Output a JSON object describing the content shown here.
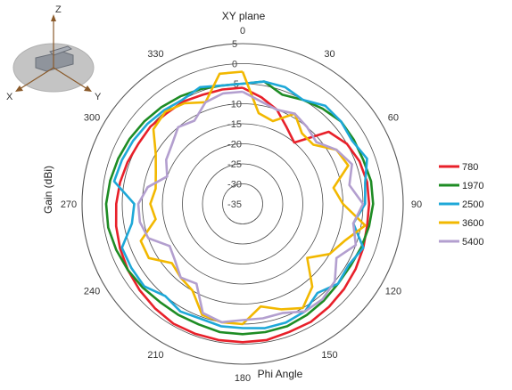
{
  "chart_data": {
    "type": "polar-line",
    "title": "XY plane",
    "xlabel": "Phi Angle",
    "ylabel": "Gain (dBi)",
    "r_range": [
      -35,
      5
    ],
    "r_ticks": [
      "5",
      "0",
      "-5",
      "-10",
      "-15",
      "-20",
      "-25",
      "-30",
      "-35"
    ],
    "angle_ticks": [
      "0",
      "30",
      "60",
      "90",
      "120",
      "150",
      "180",
      "210",
      "240",
      "270",
      "300",
      "330"
    ],
    "grid": true,
    "legend_position": "right",
    "axis_inset": {
      "axis_labels": [
        "X",
        "Y",
        "Z"
      ]
    },
    "angles": [
      0,
      10,
      20,
      30,
      40,
      50,
      60,
      70,
      80,
      90,
      100,
      110,
      120,
      130,
      140,
      150,
      160,
      170,
      180,
      190,
      200,
      210,
      220,
      230,
      240,
      250,
      260,
      270,
      280,
      290,
      300,
      310,
      320,
      330,
      340,
      350
    ],
    "series": [
      {
        "name": "780",
        "color": "#e8202a",
        "values": [
          -6,
          -8,
          -10,
          -13,
          -15,
          -7,
          -5,
          -4,
          -3.5,
          -3.5,
          -3.5,
          -3,
          -2.5,
          -2,
          -1.5,
          -1,
          -1,
          -0.5,
          -0.5,
          -0.5,
          -0.5,
          -0.5,
          -1,
          -1.5,
          -2,
          -2.5,
          -3,
          -3.5,
          -4,
          -4.5,
          -5,
          -5,
          -5.5,
          -5.5,
          -6,
          -6
        ]
      },
      {
        "name": "1970",
        "color": "#1e8c24",
        "values": [
          -5,
          -4,
          -6,
          -5,
          -4,
          -3,
          -3,
          -3,
          -2.5,
          -2.5,
          -3,
          -3.5,
          -4,
          -4,
          -3.5,
          -3,
          -2.5,
          -2.5,
          -2.5,
          -2.5,
          -3,
          -3,
          -3,
          -2.5,
          -2,
          -1.5,
          -1,
          -1,
          -1.5,
          -2,
          -2.5,
          -3,
          -3.5,
          -4,
          -4.5,
          -5
        ]
      },
      {
        "name": "2500",
        "color": "#1ea8d8",
        "values": [
          -5,
          -4,
          -4,
          -5,
          -3,
          -3,
          -3.5,
          -2,
          -4,
          -4.5,
          -7,
          -3,
          -4.5,
          -4,
          -6,
          -4,
          -3.5,
          -3.5,
          -4,
          -4,
          -4.5,
          -4,
          -5,
          -3,
          -3,
          -3,
          -7,
          -8,
          -2.5,
          -3,
          -3.5,
          -4,
          -4.5,
          -5,
          -4,
          -5
        ]
      },
      {
        "name": "3600",
        "color": "#f2b800",
        "values": [
          -2,
          -12,
          -13,
          -9,
          -12,
          -12,
          -8,
          -7,
          -12,
          -10,
          -4,
          -8,
          -10,
          -14,
          -8,
          -5,
          -7,
          -9,
          -5,
          -5,
          -5.5,
          -10,
          -11,
          -12,
          -8,
          -8,
          -13,
          -12,
          -13,
          -12,
          -10,
          -6,
          -5,
          -6,
          -8,
          -2
        ]
      },
      {
        "name": "5400",
        "color": "#b39fcf",
        "values": [
          -7,
          -9,
          -10,
          -9,
          -10,
          -11,
          -8,
          -6,
          -8,
          -5,
          -7,
          -5,
          -8,
          -5,
          -4,
          -4,
          -6,
          -6,
          -6,
          -5,
          -6,
          -12,
          -11,
          -13,
          -14,
          -10,
          -9,
          -9,
          -11,
          -15,
          -13,
          -12,
          -10,
          -11,
          -8,
          -7
        ]
      }
    ]
  }
}
